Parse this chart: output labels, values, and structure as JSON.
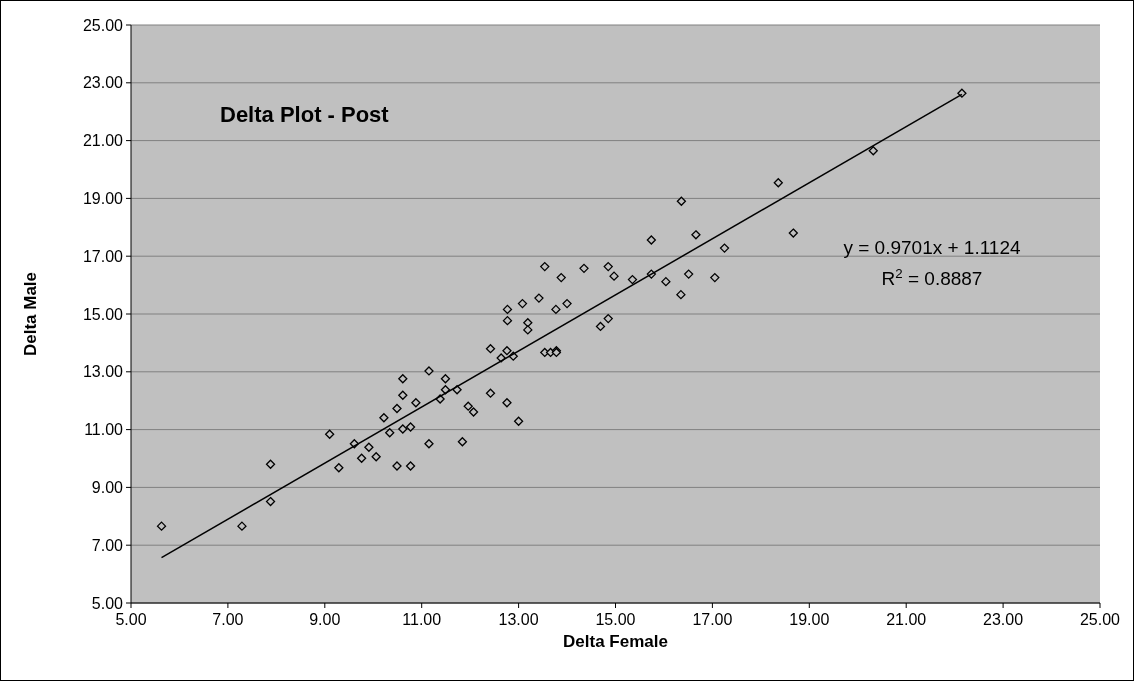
{
  "chart_data": {
    "type": "scatter",
    "title": "Delta Plot - Post",
    "xlabel": "Delta Female",
    "ylabel": "Delta Male",
    "xlim": [
      5,
      25
    ],
    "ylim": [
      5,
      25
    ],
    "xticks": [
      {
        "value": 5,
        "label": "5.00"
      },
      {
        "value": 7,
        "label": "7.00"
      },
      {
        "value": 9,
        "label": "9.00"
      },
      {
        "value": 11,
        "label": "11.00"
      },
      {
        "value": 13,
        "label": "13.00"
      },
      {
        "value": 15,
        "label": "15.00"
      },
      {
        "value": 17,
        "label": "17.00"
      },
      {
        "value": 19,
        "label": "19.00"
      },
      {
        "value": 21,
        "label": "21.00"
      },
      {
        "value": 23,
        "label": "23.00"
      },
      {
        "value": 25,
        "label": "25.00"
      }
    ],
    "yticks": [
      {
        "value": 5,
        "label": "5.00"
      },
      {
        "value": 7,
        "label": "7.00"
      },
      {
        "value": 9,
        "label": "9.00"
      },
      {
        "value": 11,
        "label": "11.00"
      },
      {
        "value": 13,
        "label": "13.00"
      },
      {
        "value": 15,
        "label": "15.00"
      },
      {
        "value": 17,
        "label": "17.00"
      },
      {
        "value": 19,
        "label": "19.00"
      },
      {
        "value": 21,
        "label": "21.00"
      },
      {
        "value": 23,
        "label": "23.00"
      },
      {
        "value": 25,
        "label": "25.00"
      }
    ],
    "grid": "y",
    "annotations": [
      "y = 0.9701x + 1.1124",
      "R$^{2}$ = 0.8887"
    ],
    "series": [
      {
        "marker": "diamond",
        "color": "#000000",
        "x": [
          5.63,
          7.29,
          7.88,
          7.88,
          9.1,
          9.29,
          9.61,
          9.76,
          9.91,
          10.06,
          10.22,
          10.34,
          10.49,
          10.61,
          10.61,
          10.61,
          10.77,
          10.49,
          10.77,
          10.88,
          11.15,
          11.15,
          11.38,
          11.49,
          11.49,
          11.73,
          11.96,
          12.07,
          11.84,
          12.42,
          12.42,
          12.64,
          12.76,
          12.76,
          13.0,
          12.89,
          12.77,
          12.77,
          13.08,
          13.19,
          13.19,
          13.42,
          13.54,
          13.54,
          13.66,
          13.78,
          13.78,
          13.77,
          13.88,
          14.0,
          14.35,
          14.69,
          14.85,
          14.85,
          14.97,
          15.35,
          15.74,
          15.74,
          16.04,
          16.35,
          16.51,
          17.05,
          17.25,
          22.15,
          20.32,
          18.36,
          18.67,
          16.36,
          16.66
        ],
        "values": [
          7.66,
          7.66,
          8.51,
          9.8,
          10.84,
          9.68,
          10.51,
          10.01,
          10.39,
          10.06,
          11.41,
          10.89,
          11.73,
          12.19,
          12.76,
          11.02,
          11.09,
          9.74,
          9.74,
          11.93,
          13.03,
          10.51,
          12.06,
          12.38,
          12.76,
          12.38,
          11.81,
          11.61,
          10.58,
          12.26,
          13.8,
          13.48,
          13.73,
          11.93,
          11.29,
          13.54,
          14.77,
          15.16,
          15.36,
          14.7,
          14.45,
          15.55,
          16.64,
          13.67,
          13.67,
          13.73,
          13.67,
          15.16,
          16.26,
          15.36,
          16.58,
          14.57,
          14.84,
          16.64,
          16.31,
          16.19,
          16.38,
          17.56,
          16.12,
          15.67,
          16.38,
          16.26,
          17.28,
          22.64,
          20.65,
          19.54,
          17.8,
          18.9,
          17.74
        ]
      },
      {
        "type": "line",
        "color": "#000000",
        "x": [
          5.63,
          22.15
        ],
        "values": [
          6.57,
          22.6
        ]
      }
    ]
  }
}
